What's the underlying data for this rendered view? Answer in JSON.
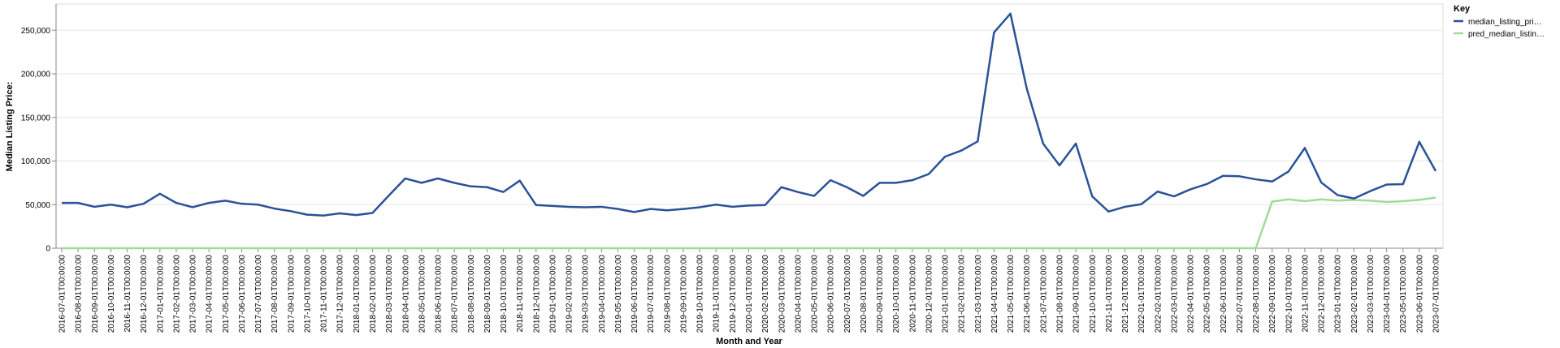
{
  "chart_data": {
    "type": "line",
    "xlabel": "Month and Year",
    "ylabel": "Median Listing Price:",
    "ylim": [
      0,
      280000
    ],
    "yticks": [
      0,
      50000,
      100000,
      150000,
      200000,
      250000
    ],
    "ytick_labels": [
      "0",
      "50,000",
      "100,000",
      "150,000",
      "200,000",
      "250,000"
    ],
    "grid": true,
    "legend_title": "Key",
    "legend_position": "top-right",
    "x": [
      "2016-07-01T00:00:00",
      "2016-08-01T00:00:00",
      "2016-09-01T00:00:00",
      "2016-10-01T00:00:00",
      "2016-11-01T00:00:00",
      "2016-12-01T00:00:00",
      "2017-01-01T00:00:00",
      "2017-02-01T00:00:00",
      "2017-03-01T00:00:00",
      "2017-04-01T00:00:00",
      "2017-05-01T00:00:00",
      "2017-06-01T00:00:00",
      "2017-07-01T00:00:00",
      "2017-08-01T00:00:00",
      "2017-09-01T00:00:00",
      "2017-10-01T00:00:00",
      "2017-11-01T00:00:00",
      "2017-12-01T00:00:00",
      "2018-01-01T00:00:00",
      "2018-02-01T00:00:00",
      "2018-03-01T00:00:00",
      "2018-04-01T00:00:00",
      "2018-05-01T00:00:00",
      "2018-06-01T00:00:00",
      "2018-07-01T00:00:00",
      "2018-08-01T00:00:00",
      "2018-09-01T00:00:00",
      "2018-10-01T00:00:00",
      "2018-11-01T00:00:00",
      "2018-12-01T00:00:00",
      "2019-01-01T00:00:00",
      "2019-02-01T00:00:00",
      "2019-03-01T00:00:00",
      "2019-04-01T00:00:00",
      "2019-05-01T00:00:00",
      "2019-06-01T00:00:00",
      "2019-07-01T00:00:00",
      "2019-08-01T00:00:00",
      "2019-09-01T00:00:00",
      "2019-10-01T00:00:00",
      "2019-11-01T00:00:00",
      "2019-12-01T00:00:00",
      "2020-01-01T00:00:00",
      "2020-02-01T00:00:00",
      "2020-03-01T00:00:00",
      "2020-04-01T00:00:00",
      "2020-05-01T00:00:00",
      "2020-06-01T00:00:00",
      "2020-07-01T00:00:00",
      "2020-08-01T00:00:00",
      "2020-09-01T00:00:00",
      "2020-10-01T00:00:00",
      "2020-11-01T00:00:00",
      "2020-12-01T00:00:00",
      "2021-01-01T00:00:00",
      "2021-02-01T00:00:00",
      "2021-03-01T00:00:00",
      "2021-04-01T00:00:00",
      "2021-05-01T00:00:00",
      "2021-06-01T00:00:00",
      "2021-07-01T00:00:00",
      "2021-08-01T00:00:00",
      "2021-09-01T00:00:00",
      "2021-10-01T00:00:00",
      "2021-11-01T00:00:00",
      "2021-12-01T00:00:00",
      "2022-01-01T00:00:00",
      "2022-02-01T00:00:00",
      "2022-03-01T00:00:00",
      "2022-04-01T00:00:00",
      "2022-05-01T00:00:00",
      "2022-06-01T00:00:00",
      "2022-07-01T00:00:00",
      "2022-08-01T00:00:00",
      "2022-09-01T00:00:00",
      "2022-10-01T00:00:00",
      "2022-11-01T00:00:00",
      "2022-12-01T00:00:00",
      "2023-01-01T00:00:00",
      "2023-02-01T00:00:00",
      "2023-03-01T00:00:00",
      "2023-04-01T00:00:00",
      "2023-05-01T00:00:00",
      "2023-06-01T00:00:00",
      "2023-07-01T00:00:00"
    ],
    "series": [
      {
        "name": "median_listing_pri…",
        "color": "#2a5298",
        "values": [
          52000,
          52000,
          47500,
          50000,
          47000,
          51000,
          62500,
          52000,
          47000,
          52000,
          54500,
          51000,
          50000,
          45500,
          42500,
          38500,
          37500,
          40000,
          38000,
          40500,
          60500,
          80000,
          75000,
          80000,
          75000,
          71000,
          70000,
          64500,
          77500,
          49500,
          48500,
          47500,
          47000,
          47500,
          45000,
          41500,
          45000,
          43500,
          45000,
          47000,
          50000,
          47500,
          49000,
          49500,
          70000,
          64500,
          60000,
          78000,
          70000,
          60000,
          75000,
          75000,
          78000,
          85000,
          105000,
          112000,
          122500,
          247500,
          269000,
          183000,
          120000,
          95000,
          120000,
          59500,
          42000,
          47500,
          50500,
          65000,
          59500,
          67500,
          73500,
          83000,
          82500,
          79000,
          76500,
          88000,
          115000,
          75500,
          61000,
          57000,
          65500,
          73000,
          73500,
          122000,
          88500
        ]
      },
      {
        "name": "pred_median_listin…",
        "color": "#a1d99b",
        "values": [
          0,
          0,
          0,
          0,
          0,
          0,
          0,
          0,
          0,
          0,
          0,
          0,
          0,
          0,
          0,
          0,
          0,
          0,
          0,
          0,
          0,
          0,
          0,
          0,
          0,
          0,
          0,
          0,
          0,
          0,
          0,
          0,
          0,
          0,
          0,
          0,
          0,
          0,
          0,
          0,
          0,
          0,
          0,
          0,
          0,
          0,
          0,
          0,
          0,
          0,
          0,
          0,
          0,
          0,
          0,
          0,
          0,
          0,
          0,
          0,
          0,
          0,
          0,
          0,
          0,
          0,
          0,
          0,
          0,
          0,
          0,
          0,
          0,
          0,
          53500,
          56000,
          54000,
          56000,
          54500,
          55500,
          54500,
          53000,
          54000,
          55500,
          58000
        ]
      }
    ]
  }
}
